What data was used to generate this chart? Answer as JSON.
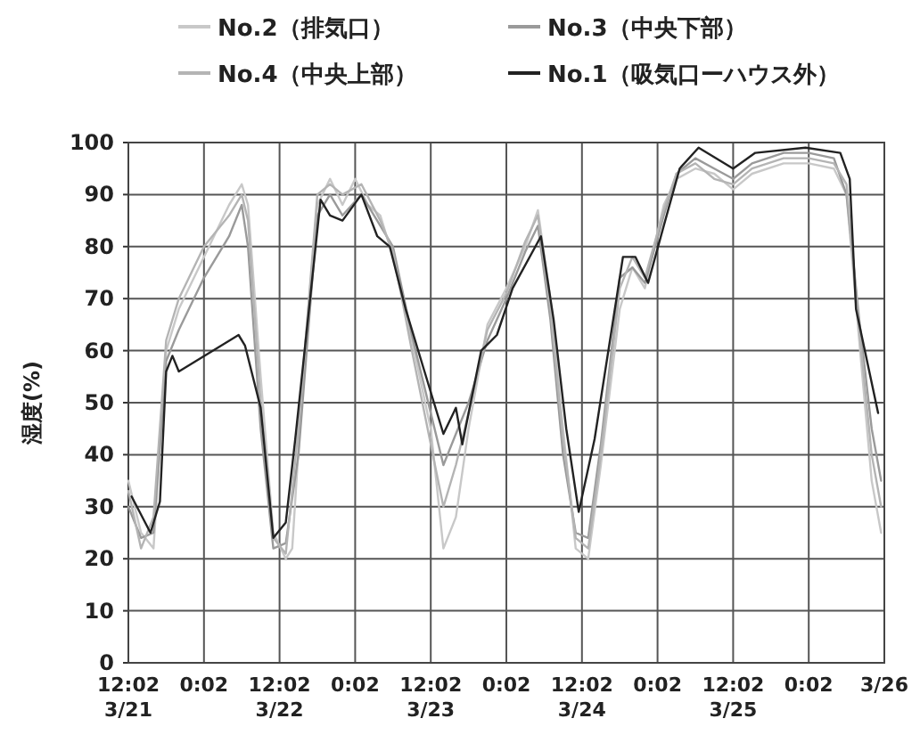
{
  "chart_data": {
    "type": "line",
    "ylabel": "湿度(%)",
    "xlim": [
      "--03-21T12:02",
      "--03-26T12:02"
    ],
    "ylim": [
      0,
      100
    ],
    "xticks": [
      {
        "value": "--03-21T12:02",
        "label": "12:02\n3/21"
      },
      {
        "value": "--03-22T00:02",
        "label": "0:02"
      },
      {
        "value": "--03-22T12:02",
        "label": "12:02\n3/22"
      },
      {
        "value": "--03-23T00:02",
        "label": "0:02"
      },
      {
        "value": "--03-23T12:02",
        "label": "12:02\n3/23"
      },
      {
        "value": "--03-24T00:02",
        "label": "0:02"
      },
      {
        "value": "--03-24T12:02",
        "label": "12:02\n3/24"
      },
      {
        "value": "--03-25T00:02",
        "label": "0:02"
      },
      {
        "value": "--03-25T12:02",
        "label": "12:02\n3/25"
      },
      {
        "value": "--03-26T00:02",
        "label": "0:02"
      },
      {
        "value": "--03-26T12:02",
        "label": "3/26"
      }
    ],
    "yticks": [
      0,
      10,
      20,
      30,
      40,
      50,
      60,
      70,
      80,
      90,
      100
    ],
    "grid": true,
    "legend": "top",
    "line_style": "solid",
    "marker": "none",
    "series": [
      {
        "name": "No.2（排気口）",
        "color": "#c8c8c8",
        "x": [
          "--03-21T12:02",
          "--03-21T14:02",
          "--03-21T16:02",
          "--03-21T18:02",
          "--03-21T20:02",
          "--03-22T00:02",
          "--03-22T04:02",
          "--03-22T06:02",
          "--03-22T07:02",
          "--03-22T09:02",
          "--03-22T11:02",
          "--03-22T13:02",
          "--03-22T14:02",
          "--03-22T16:02",
          "--03-22T18:02",
          "--03-22T20:02",
          "--03-22T22:02",
          "--03-23T00:02",
          "--03-23T02:02",
          "--03-23T04:02",
          "--03-23T06:02",
          "--03-23T09:02",
          "--03-23T12:02",
          "--03-23T14:02",
          "--03-23T16:02",
          "--03-23T18:02",
          "--03-23T21:02",
          "--03-24T00:02",
          "--03-24T03:02",
          "--03-24T05:02",
          "--03-24T07:02",
          "--03-24T09:02",
          "--03-24T11:02",
          "--03-24T13:02",
          "--03-24T15:02",
          "--03-24T18:02",
          "--03-24T20:02",
          "--03-24T22:02",
          "--03-25T01:02",
          "--03-25T03:02",
          "--03-25T06:02",
          "--03-25T09:02",
          "--03-25T12:02",
          "--03-25T15:02",
          "--03-25T20:02",
          "--03-26T00:02",
          "--03-26T04:02",
          "--03-26T06:02",
          "--03-26T08:02",
          "--03-26T10:02",
          "--03-26T11:32"
        ],
        "values": [
          35,
          25,
          22,
          60,
          68,
          78,
          88,
          92,
          88,
          55,
          25,
          20,
          22,
          60,
          88,
          93,
          88,
          93,
          88,
          86,
          78,
          62,
          45,
          22,
          28,
          45,
          65,
          72,
          80,
          87,
          70,
          45,
          22,
          20,
          38,
          68,
          76,
          72,
          88,
          93,
          95,
          94,
          91,
          94,
          96,
          96,
          95,
          90,
          62,
          35,
          25
        ]
      },
      {
        "name": "No.3（中央下部）",
        "color": "#9a9a9a",
        "x": [
          "--03-21T12:02",
          "--03-21T14:02",
          "--03-21T16:02",
          "--03-21T18:02",
          "--03-21T20:02",
          "--03-22T00:02",
          "--03-22T04:02",
          "--03-22T06:02",
          "--03-22T07:02",
          "--03-22T09:02",
          "--03-22T11:02",
          "--03-22T13:02",
          "--03-22T15:02",
          "--03-22T18:02",
          "--03-22T20:02",
          "--03-22T22:02",
          "--03-23T01:02",
          "--03-23T04:02",
          "--03-23T06:02",
          "--03-23T09:02",
          "--03-23T12:02",
          "--03-23T14:02",
          "--03-23T16:02",
          "--03-23T18:02",
          "--03-23T21:02",
          "--03-24T00:02",
          "--03-24T03:02",
          "--03-24T05:02",
          "--03-24T07:02",
          "--03-24T09:02",
          "--03-24T11:02",
          "--03-24T13:02",
          "--03-24T15:02",
          "--03-24T18:02",
          "--03-24T20:02",
          "--03-24T22:02",
          "--03-25T01:02",
          "--03-25T03:02",
          "--03-25T06:02",
          "--03-25T09:02",
          "--03-25T12:02",
          "--03-25T15:02",
          "--03-25T20:02",
          "--03-26T00:02",
          "--03-26T04:02",
          "--03-26T06:02",
          "--03-26T08:02",
          "--03-26T10:02",
          "--03-26T11:32"
        ],
        "values": [
          30,
          24,
          25,
          58,
          64,
          74,
          82,
          88,
          80,
          45,
          22,
          23,
          40,
          86,
          90,
          86,
          90,
          84,
          80,
          63,
          48,
          38,
          44,
          50,
          62,
          70,
          79,
          84,
          66,
          40,
          25,
          24,
          42,
          74,
          76,
          73,
          86,
          94,
          97,
          95,
          93,
          96,
          98,
          98,
          97,
          90,
          66,
          45,
          35
        ]
      },
      {
        "name": "No.4（中央上部）",
        "color": "#b4b4b4",
        "x": [
          "--03-21T12:02",
          "--03-21T14:02",
          "--03-21T16:02",
          "--03-21T18:02",
          "--03-21T20:02",
          "--03-22T00:02",
          "--03-22T04:02",
          "--03-22T06:02",
          "--03-22T07:02",
          "--03-22T09:02",
          "--03-22T11:02",
          "--03-22T13:02",
          "--03-22T15:02",
          "--03-22T18:02",
          "--03-22T20:02",
          "--03-22T22:02",
          "--03-23T01:02",
          "--03-23T04:02",
          "--03-23T06:02",
          "--03-23T09:02",
          "--03-23T12:02",
          "--03-23T14:02",
          "--03-23T16:02",
          "--03-23T18:02",
          "--03-23T21:02",
          "--03-24T00:02",
          "--03-24T03:02",
          "--03-24T05:02",
          "--03-24T07:02",
          "--03-24T09:02",
          "--03-24T11:02",
          "--03-24T13:02",
          "--03-24T15:02",
          "--03-24T18:02",
          "--03-24T20:02",
          "--03-24T22:02",
          "--03-25T01:02",
          "--03-25T03:02",
          "--03-25T06:02",
          "--03-25T09:02",
          "--03-25T12:02",
          "--03-25T15:02",
          "--03-25T20:02",
          "--03-26T00:02",
          "--03-26T04:02",
          "--03-26T06:02",
          "--03-26T08:02",
          "--03-26T10:02",
          "--03-26T11:32"
        ],
        "values": [
          33,
          22,
          28,
          62,
          70,
          80,
          86,
          90,
          85,
          50,
          24,
          21,
          45,
          90,
          92,
          90,
          92,
          85,
          79,
          60,
          42,
          30,
          38,
          48,
          64,
          71,
          81,
          86,
          68,
          43,
          24,
          22,
          40,
          72,
          78,
          74,
          87,
          94,
          96,
          93,
          92,
          95,
          97,
          97,
          96,
          92,
          64,
          40,
          30
        ]
      },
      {
        "name": "No.1（吸気口ーハウス外）",
        "color": "#222222",
        "x": [
          "--03-21T12:32",
          "--03-21T15:32",
          "--03-21T17:02",
          "--03-21T18:02",
          "--03-21T19:02",
          "--03-21T20:02",
          "--03-22T05:32",
          "--03-22T06:32",
          "--03-22T09:02",
          "--03-22T11:02",
          "--03-22T13:02",
          "--03-22T14:32",
          "--03-22T18:32",
          "--03-22T20:02",
          "--03-22T22:02",
          "--03-23T01:02",
          "--03-23T03:32",
          "--03-23T05:32",
          "--03-23T08:02",
          "--03-23T11:02",
          "--03-23T12:32",
          "--03-23T14:02",
          "--03-23T16:02",
          "--03-23T17:02",
          "--03-23T20:02",
          "--03-23T22:32",
          "--03-24T01:02",
          "--03-24T05:32",
          "--03-24T07:32",
          "--03-24T09:32",
          "--03-24T11:32",
          "--03-24T14:02",
          "--03-24T18:32",
          "--03-24T20:32",
          "--03-24T22:32",
          "--03-25T01:02",
          "--03-25T03:32",
          "--03-25T06:32",
          "--03-25T12:02",
          "--03-25T15:32",
          "--03-25T23:32",
          "--03-26T05:02",
          "--03-26T06:32",
          "--03-26T07:32",
          "--03-26T11:02"
        ],
        "values": [
          32,
          25,
          31,
          56,
          59,
          56,
          63,
          61,
          49,
          24,
          27,
          43,
          89,
          86,
          85,
          90,
          82,
          80,
          68,
          56,
          50,
          44,
          49,
          42,
          60,
          63,
          72,
          82,
          66,
          45,
          29,
          43,
          78,
          78,
          73,
          84,
          95,
          99,
          95,
          98,
          99,
          98,
          93,
          68,
          48
        ]
      }
    ]
  }
}
